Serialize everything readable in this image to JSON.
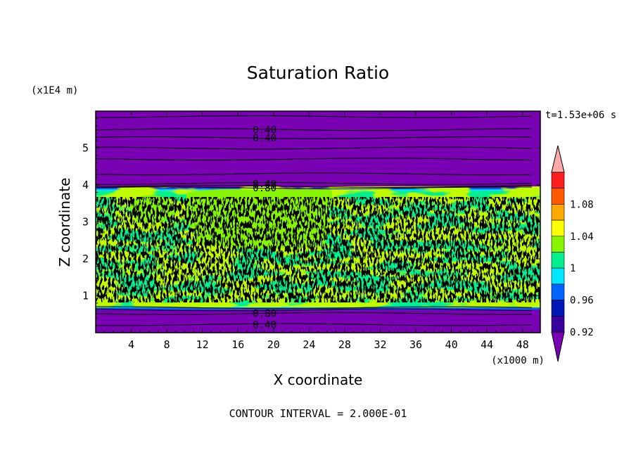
{
  "chart_data": {
    "type": "heatmap",
    "title": "Saturation Ratio",
    "xlabel": "X coordinate",
    "ylabel": "Z coordinate",
    "x_unit": "(x1000 m)",
    "y_unit": "(x1E4 m)",
    "time_label": "t=1.53e+06 s",
    "footer": "CONTOUR INTERVAL = 2.000E-01",
    "xlim": [
      0,
      50
    ],
    "ylim": [
      0,
      6
    ],
    "x_ticks": [
      4,
      8,
      12,
      16,
      20,
      24,
      28,
      32,
      36,
      40,
      44,
      48
    ],
    "y_ticks": [
      1,
      2,
      3,
      4,
      5
    ],
    "colorbar": {
      "levels": [
        {
          "lo": null,
          "hi": 0.92,
          "color": "#7a00b4"
        },
        {
          "lo": 0.92,
          "hi": 0.94,
          "color": "#3a009e"
        },
        {
          "lo": 0.94,
          "hi": 0.96,
          "color": "#0018b8"
        },
        {
          "lo": 0.96,
          "hi": 0.98,
          "color": "#0064ff"
        },
        {
          "lo": 0.98,
          "hi": 1.0,
          "color": "#00e8ff"
        },
        {
          "lo": 1.0,
          "hi": 1.02,
          "color": "#00f090"
        },
        {
          "lo": 1.02,
          "hi": 1.04,
          "color": "#88f500"
        },
        {
          "lo": 1.04,
          "hi": 1.06,
          "color": "#ffff00"
        },
        {
          "lo": 1.06,
          "hi": 1.08,
          "color": "#ffa800"
        },
        {
          "lo": 1.08,
          "hi": 1.1,
          "color": "#ff5a00"
        },
        {
          "lo": 1.1,
          "hi": 1.12,
          "color": "#ff1e1e"
        },
        {
          "lo": 1.12,
          "hi": null,
          "color": "#ffaaaa"
        }
      ],
      "tick_labels": [
        "0.92",
        "0.96",
        "1",
        "1.04",
        "1.08"
      ]
    },
    "regions": [
      {
        "z_from": 0.0,
        "z_to": 0.68,
        "value": 0.4,
        "color": "#7a00b4",
        "label": "below 0.92"
      },
      {
        "z_from": 0.68,
        "z_to": 3.9,
        "value": 1.0,
        "color": "#00f090",
        "label": "1.00-1.02 with patches of 1.02-1.04"
      },
      {
        "z_from": 3.9,
        "z_to": 6.0,
        "value": 0.4,
        "color": "#7a00b4",
        "label": "below 0.92"
      }
    ],
    "contour_labels": [
      {
        "text": "0.40",
        "x": 19,
        "z": 5.5
      },
      {
        "text": "0.40",
        "x": 19,
        "z": 5.28
      },
      {
        "text": "0.40",
        "x": 19,
        "z": 4.04
      },
      {
        "text": "0.80",
        "x": 19,
        "z": 3.92
      },
      {
        "text": "0.80",
        "x": 19,
        "z": 0.52
      },
      {
        "text": "0.40",
        "x": 19,
        "z": 0.22
      }
    ]
  }
}
